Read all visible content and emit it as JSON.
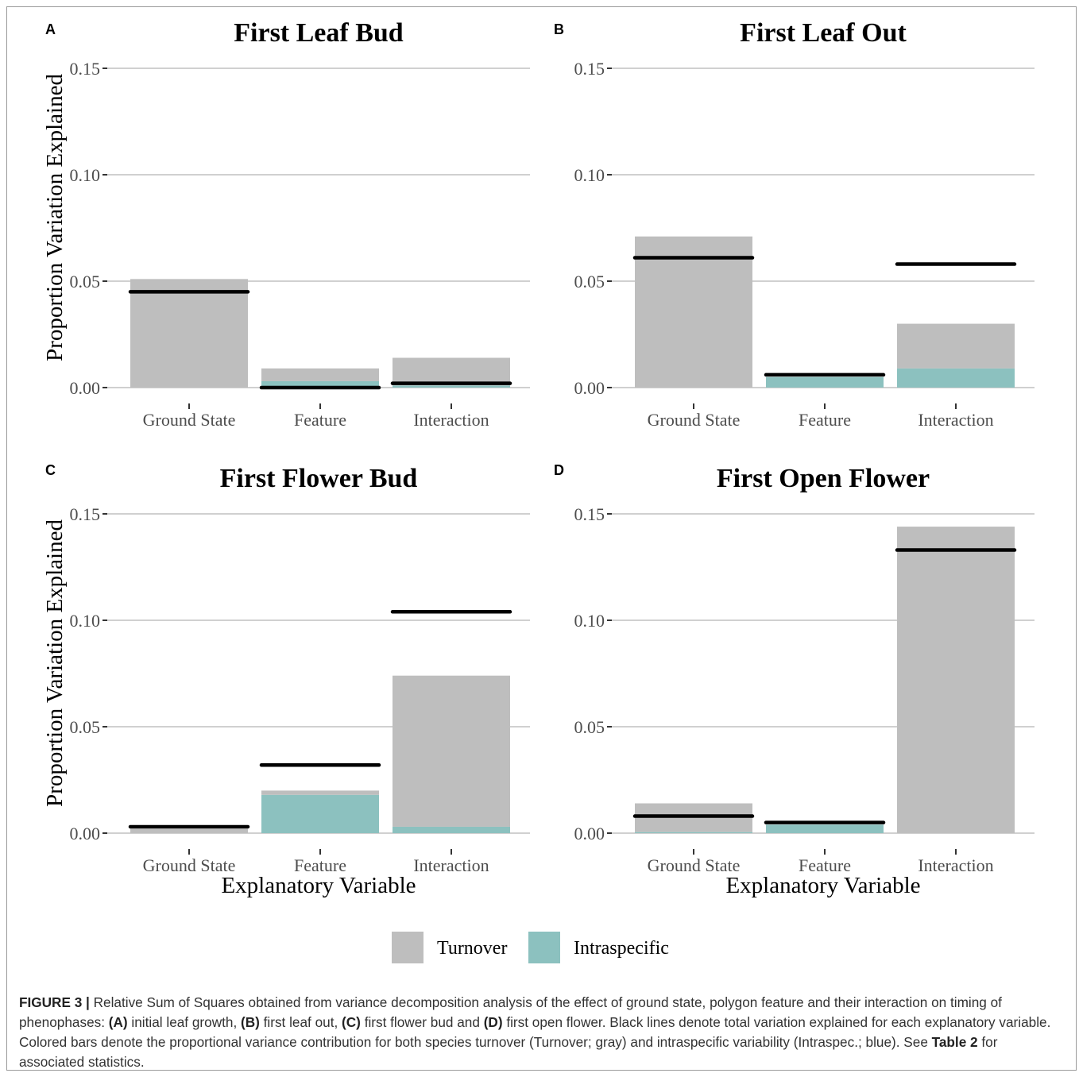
{
  "figure": {
    "series_legend": [
      {
        "name": "Turnover",
        "color": "#bebebe"
      },
      {
        "name": "Intraspecific",
        "color": "#8cc1bf"
      }
    ],
    "total_line_color": "#000000",
    "grid_color": "#d0d0d0"
  },
  "chart_data": [
    {
      "type": "bar",
      "panel_label": "A",
      "title": "First Leaf Bud",
      "xlabel": "",
      "ylabel": "Proportion Variation Explained",
      "categories": [
        "Ground State",
        "Feature",
        "Interaction"
      ],
      "yticks": [
        "0.00",
        "0.05",
        "0.10",
        "0.15"
      ],
      "ylim": [
        0,
        0.15
      ],
      "stacked": true,
      "series": [
        {
          "name": "Intraspecific",
          "values": [
            0.0,
            0.003,
            0.001
          ]
        },
        {
          "name": "Turnover",
          "values": [
            0.051,
            0.006,
            0.013
          ]
        }
      ],
      "total_lines": [
        0.045,
        0.0,
        0.002
      ]
    },
    {
      "type": "bar",
      "panel_label": "B",
      "title": "First Leaf Out",
      "xlabel": "",
      "ylabel": "",
      "categories": [
        "Ground State",
        "Feature",
        "Interaction"
      ],
      "yticks": [
        "0.00",
        "0.05",
        "0.10",
        "0.15"
      ],
      "ylim": [
        0,
        0.15
      ],
      "stacked": true,
      "series": [
        {
          "name": "Intraspecific",
          "values": [
            0.0,
            0.005,
            0.009
          ]
        },
        {
          "name": "Turnover",
          "values": [
            0.071,
            0.0,
            0.021
          ]
        }
      ],
      "total_lines": [
        0.061,
        0.006,
        0.058
      ]
    },
    {
      "type": "bar",
      "panel_label": "C",
      "title": "First Flower Bud",
      "xlabel": "Explanatory Variable",
      "ylabel": "Proportion Variation Explained",
      "categories": [
        "Ground State",
        "Feature",
        "Interaction"
      ],
      "yticks": [
        "0.00",
        "0.05",
        "0.10",
        "0.15"
      ],
      "ylim": [
        0,
        0.15
      ],
      "stacked": true,
      "series": [
        {
          "name": "Intraspecific",
          "values": [
            0.0,
            0.018,
            0.003
          ]
        },
        {
          "name": "Turnover",
          "values": [
            0.002,
            0.002,
            0.071
          ]
        }
      ],
      "total_lines": [
        0.003,
        0.032,
        0.104
      ]
    },
    {
      "type": "bar",
      "panel_label": "D",
      "title": "First Open Flower",
      "xlabel": "Explanatory Variable",
      "ylabel": "",
      "categories": [
        "Ground State",
        "Feature",
        "Interaction"
      ],
      "yticks": [
        "0.00",
        "0.05",
        "0.10",
        "0.15"
      ],
      "ylim": [
        0,
        0.15
      ],
      "stacked": true,
      "series": [
        {
          "name": "Intraspecific",
          "values": [
            0.0005,
            0.004,
            0.0
          ]
        },
        {
          "name": "Turnover",
          "values": [
            0.0135,
            0.0,
            0.144
          ]
        }
      ],
      "total_lines": [
        0.008,
        0.005,
        0.133
      ]
    }
  ],
  "caption": {
    "label": "FIGURE 3 |",
    "t1": " Relative Sum of Squares obtained from variance decomposition analysis of the effect of ground state, polygon feature and their interaction on timing of phenophases: ",
    "a_label": "(A)",
    "t2": " initial leaf growth, ",
    "b_label": "(B)",
    "t3": " first leaf out, ",
    "c_label": "(C)",
    "t4": " first flower bud and ",
    "d_label": "(D)",
    "t5": " first open flower. Black lines denote total variation explained for each explanatory variable. Colored bars denote the proportional variance contribution for both species turnover (Turnover; gray) and intraspecific variability (Intraspec.; blue). See ",
    "table_ref": "Table 2",
    "t6": " for associated statistics."
  }
}
